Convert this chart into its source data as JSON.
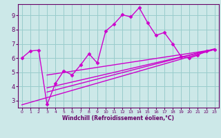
{
  "bg_color": "#cce8e8",
  "line_color": "#cc00cc",
  "grid_color": "#99cccc",
  "xlabel": "Windchill (Refroidissement éolien,°C)",
  "xlabel_color": "#660066",
  "tick_color": "#660066",
  "spine_color": "#660066",
  "xlim": [
    -0.5,
    23.5
  ],
  "ylim": [
    2.5,
    9.8
  ],
  "yticks": [
    3,
    4,
    5,
    6,
    7,
    8,
    9
  ],
  "xticks": [
    0,
    1,
    2,
    3,
    4,
    5,
    6,
    7,
    8,
    9,
    10,
    11,
    12,
    13,
    14,
    15,
    16,
    17,
    18,
    19,
    20,
    21,
    22,
    23
  ],
  "curve1_x": [
    0,
    1,
    2,
    3,
    4,
    5,
    6,
    7,
    8,
    9,
    10,
    11,
    12,
    13,
    14,
    15,
    16,
    17,
    18,
    19,
    20,
    21,
    22,
    23
  ],
  "curve1_y": [
    6.0,
    6.5,
    6.55,
    2.72,
    4.2,
    5.1,
    4.8,
    5.5,
    6.3,
    5.65,
    7.9,
    8.4,
    9.05,
    8.9,
    9.55,
    8.5,
    7.6,
    7.8,
    7.0,
    6.1,
    6.0,
    6.2,
    6.5,
    6.6
  ],
  "line2_x": [
    0,
    23
  ],
  "line2_y": [
    2.7,
    6.6
  ],
  "line3_x": [
    3,
    23
  ],
  "line3_y": [
    3.6,
    6.65
  ],
  "line4_x": [
    3,
    23
  ],
  "line4_y": [
    3.9,
    6.62
  ],
  "line5_x": [
    3,
    23
  ],
  "line5_y": [
    4.8,
    6.6
  ],
  "marker": "D",
  "markersize": 2.5,
  "linewidth": 1.0,
  "xlabel_fontsize": 5.5,
  "tick_fontsize_x": 4.5,
  "tick_fontsize_y": 6
}
